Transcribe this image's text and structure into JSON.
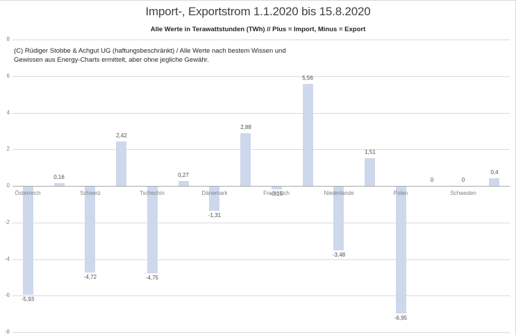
{
  "chart_data": {
    "type": "bar",
    "title": "Import-, Exportstrom 1.1.2020 bis 15.8.2020",
    "subtitle": "Alle Werte in Terawattstunden (TWh) // Plus = Import, Minus = Export",
    "annotation_lines": [
      "(C) Rüdiger Stobbe & Achgut UG (haftungsbeschränkt) / Alle Werte nach bestem Wissen und",
      "Gewissen aus Energy-Charts ermittelt, aber ohne jegliche Gewähr."
    ],
    "unit": "TWh",
    "ylim": [
      -8,
      8
    ],
    "ytick_interval": 2,
    "ytick_labels": [
      "8",
      "6",
      "4",
      "2",
      "0",
      "-2",
      "-4",
      "-6",
      "-8"
    ],
    "grid": true,
    "legend_position": "none",
    "bar_color": "#cdd8ed",
    "gridline_color": "#d9d9d9",
    "axis_line_color": "#a8a8a8",
    "bars": [
      {
        "category": "Österreich",
        "value": -5.93,
        "value_label": "-5,93"
      },
      {
        "category": "",
        "value": 0.16,
        "value_label": "0,16"
      },
      {
        "category": "Schweiz",
        "value": -4.72,
        "value_label": "-4,72"
      },
      {
        "category": "",
        "value": 2.42,
        "value_label": "2,42"
      },
      {
        "category": "Tschechin",
        "value": -4.75,
        "value_label": "-4,75"
      },
      {
        "category": "",
        "value": 0.27,
        "value_label": "0,27"
      },
      {
        "category": "Dänemark",
        "value": -1.31,
        "value_label": "-1,31"
      },
      {
        "category": "",
        "value": 2.88,
        "value_label": "2,88"
      },
      {
        "category": "Frankreich",
        "value": -0.15,
        "value_label": "-0,15"
      },
      {
        "category": "",
        "value": 5.56,
        "value_label": "5,56"
      },
      {
        "category": "Niederlande",
        "value": -3.48,
        "value_label": "-3,48"
      },
      {
        "category": "",
        "value": 1.51,
        "value_label": "1,51"
      },
      {
        "category": "Polen",
        "value": -6.95,
        "value_label": "-6,95"
      },
      {
        "category": "",
        "value": 0,
        "value_label": "0"
      },
      {
        "category": "Schweden",
        "value": 0,
        "value_label": "0"
      },
      {
        "category": "",
        "value": 0.4,
        "value_label": "0,4"
      }
    ]
  }
}
